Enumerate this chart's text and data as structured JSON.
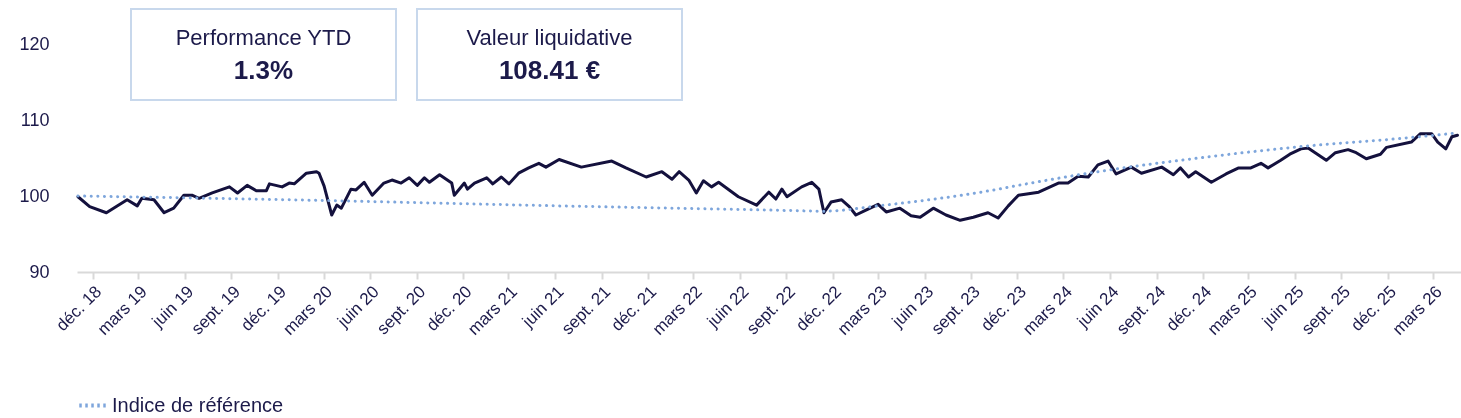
{
  "chart_data": {
    "type": "line",
    "annotations": [
      "Performance YTD",
      "1.3%",
      "Valeur liquidative",
      "108.41 €"
    ],
    "series": [
      {
        "color": "#14113d",
        "line_style": "solid",
        "x": [
          "2018-11-02",
          "2018-11-25",
          "2018-12-28",
          "2019-02-07",
          "2019-02-27",
          "2019-03-08",
          "2019-04-01",
          "2019-04-21",
          "2019-05-10",
          "2019-05-30",
          "2019-06-15",
          "2019-06-29",
          "2019-07-25",
          "2019-08-28",
          "2019-09-13",
          "2019-10-02",
          "2019-10-20",
          "2019-11-09",
          "2019-11-15",
          "2019-12-10",
          "2019-12-24",
          "2020-01-03",
          "2020-01-27",
          "2020-02-16",
          "2020-02-21",
          "2020-03-02",
          "2020-03-17",
          "2020-03-27",
          "2020-04-05",
          "2020-04-24",
          "2020-05-04",
          "2020-05-20",
          "2020-06-05",
          "2020-06-28",
          "2020-07-14",
          "2020-08-01",
          "2020-08-17",
          "2020-09-02",
          "2020-09-16",
          "2020-09-26",
          "2020-10-16",
          "2020-11-09",
          "2020-11-14",
          "2020-12-04",
          "2020-12-10",
          "2020-12-24",
          "2021-01-17",
          "2021-01-29",
          "2021-02-15",
          "2021-03-02",
          "2021-03-21",
          "2021-04-10",
          "2021-04-30",
          "2021-05-14",
          "2021-06-09",
          "2021-07-23",
          "2021-09-21",
          "2021-10-19",
          "2021-11-28",
          "2021-12-29",
          "2022-01-18",
          "2022-02-01",
          "2022-02-20",
          "2022-03-07",
          "2022-03-21",
          "2022-04-06",
          "2022-04-20",
          "2022-05-29",
          "2022-07-04",
          "2022-07-28",
          "2022-08-11",
          "2022-08-23",
          "2022-09-02",
          "2022-10-01",
          "2022-10-21",
          "2022-11-04",
          "2022-11-14",
          "2022-11-28",
          "2022-12-19",
          "2023-01-03",
          "2023-01-16",
          "2023-02-07",
          "2023-03-01",
          "2023-03-17",
          "2023-04-13",
          "2023-05-05",
          "2023-05-23",
          "2023-06-18",
          "2023-07-13",
          "2023-08-10",
          "2023-09-05",
          "2023-10-04",
          "2023-10-24",
          "2023-11-13",
          "2023-12-03",
          "2024-01-12",
          "2024-02-20",
          "2024-03-10",
          "2024-03-30",
          "2024-04-19",
          "2024-05-08",
          "2024-05-28",
          "2024-06-13",
          "2024-07-13",
          "2024-08-02",
          "2024-09-11",
          "2024-10-04",
          "2024-10-18",
          "2024-11-03",
          "2024-11-17",
          "2024-12-18",
          "2025-01-16",
          "2025-02-10",
          "2025-03-06",
          "2025-03-26",
          "2025-04-09",
          "2025-05-04",
          "2025-05-22",
          "2025-06-13",
          "2025-06-27",
          "2025-08-02",
          "2025-08-20",
          "2025-09-14",
          "2025-09-30",
          "2025-10-20",
          "2025-11-17",
          "2025-11-29",
          "2026-01-17",
          "2026-02-04",
          "2026-02-26",
          "2026-03-10",
          "2026-03-26",
          "2026-04-07",
          "2026-04-18"
        ],
        "values": [
          99.9,
          98.6,
          97.8,
          99.5,
          98.7,
          99.7,
          99.5,
          97.8,
          98.4,
          100.1,
          100.1,
          99.7,
          100.4,
          101.2,
          100.4,
          101.4,
          100.7,
          100.7,
          101.6,
          101.2,
          101.7,
          101.6,
          103.0,
          103.2,
          103.0,
          101.3,
          97.5,
          98.8,
          98.4,
          100.9,
          100.8,
          101.8,
          100.1,
          101.7,
          102.1,
          101.7,
          102.4,
          101.4,
          102.4,
          101.8,
          102.8,
          101.7,
          100.1,
          101.7,
          100.9,
          101.7,
          102.4,
          101.6,
          102.5,
          101.6,
          103.0,
          103.7,
          104.3,
          103.8,
          104.8,
          103.8,
          104.6,
          103.7,
          102.5,
          103.2,
          102.2,
          103.2,
          102.1,
          100.4,
          102.0,
          101.2,
          101.8,
          99.9,
          98.8,
          100.5,
          99.6,
          100.9,
          99.9,
          101.2,
          101.8,
          100.9,
          97.8,
          99.2,
          99.5,
          98.6,
          97.5,
          98.2,
          98.9,
          97.9,
          98.4,
          97.4,
          97.2,
          98.4,
          97.5,
          96.8,
          97.2,
          97.8,
          97.1,
          98.7,
          100.1,
          100.5,
          101.7,
          101.7,
          102.6,
          102.5,
          104.1,
          104.6,
          102.9,
          103.8,
          103.0,
          103.8,
          102.8,
          103.7,
          102.5,
          103.2,
          101.8,
          102.9,
          103.7,
          103.7,
          104.3,
          103.7,
          104.7,
          105.5,
          106.2,
          106.3,
          104.7,
          105.7,
          106.1,
          105.7,
          104.9,
          105.5,
          106.4,
          107.1,
          108.2,
          108.2,
          107.1,
          106.2,
          107.8,
          108.0
        ]
      },
      {
        "name": "Indice de référence",
        "color": "#7ea6dc",
        "line_style": "dotted",
        "x": [
          "2018-11-02",
          "2019-12-24",
          "2021-06-09",
          "2022-09-02",
          "2022-11-14",
          "2023-03-01",
          "2023-10-24",
          "2023-12-03",
          "2024-05-08",
          "2024-11-23",
          "2025-06-13",
          "2026-01-17",
          "2026-04-18"
        ],
        "values": [
          100.0,
          99.5,
          98.7,
          98.1,
          98.0,
          98.7,
          100.9,
          101.4,
          103.2,
          105.0,
          106.5,
          107.7,
          108.3
        ]
      }
    ],
    "xlim": [
      "2018-10-31",
      "2026-04-25"
    ],
    "xticks": [
      {
        "value": "2018-12-01",
        "label": "déc. 18"
      },
      {
        "value": "2019-03-01",
        "label": "mars 19"
      },
      {
        "value": "2019-06-01",
        "label": "juin 19"
      },
      {
        "value": "2019-09-01",
        "label": "sept. 19"
      },
      {
        "value": "2019-12-01",
        "label": "déc. 19"
      },
      {
        "value": "2020-03-01",
        "label": "mars 20"
      },
      {
        "value": "2020-06-01",
        "label": "juin 20"
      },
      {
        "value": "2020-09-01",
        "label": "sept. 20"
      },
      {
        "value": "2020-12-01",
        "label": "déc. 20"
      },
      {
        "value": "2021-03-01",
        "label": "mars 21"
      },
      {
        "value": "2021-06-01",
        "label": "juin 21"
      },
      {
        "value": "2021-09-01",
        "label": "sept. 21"
      },
      {
        "value": "2021-12-01",
        "label": "déc. 21"
      },
      {
        "value": "2022-03-01",
        "label": "mars 22"
      },
      {
        "value": "2022-06-01",
        "label": "juin 22"
      },
      {
        "value": "2022-09-01",
        "label": "sept. 22"
      },
      {
        "value": "2022-12-01",
        "label": "déc. 22"
      },
      {
        "value": "2023-03-01",
        "label": "mars 23"
      },
      {
        "value": "2023-06-01",
        "label": "juin 23"
      },
      {
        "value": "2023-09-01",
        "label": "sept. 23"
      },
      {
        "value": "2023-12-01",
        "label": "déc. 23"
      },
      {
        "value": "2024-03-01",
        "label": "mars 24"
      },
      {
        "value": "2024-06-01",
        "label": "juin 24"
      },
      {
        "value": "2024-09-01",
        "label": "sept. 24"
      },
      {
        "value": "2024-12-01",
        "label": "déc. 24"
      },
      {
        "value": "2025-03-01",
        "label": "mars 25"
      },
      {
        "value": "2025-06-01",
        "label": "juin 25"
      },
      {
        "value": "2025-09-01",
        "label": "sept. 25"
      },
      {
        "value": "2025-12-01",
        "label": "déc. 25"
      },
      {
        "value": "2026-03-01",
        "label": "mars 26"
      }
    ],
    "ylim": [
      90,
      120
    ],
    "yticks": [
      90,
      100,
      110,
      120
    ],
    "grid": false,
    "legend": "bottom",
    "marker": "none"
  }
}
